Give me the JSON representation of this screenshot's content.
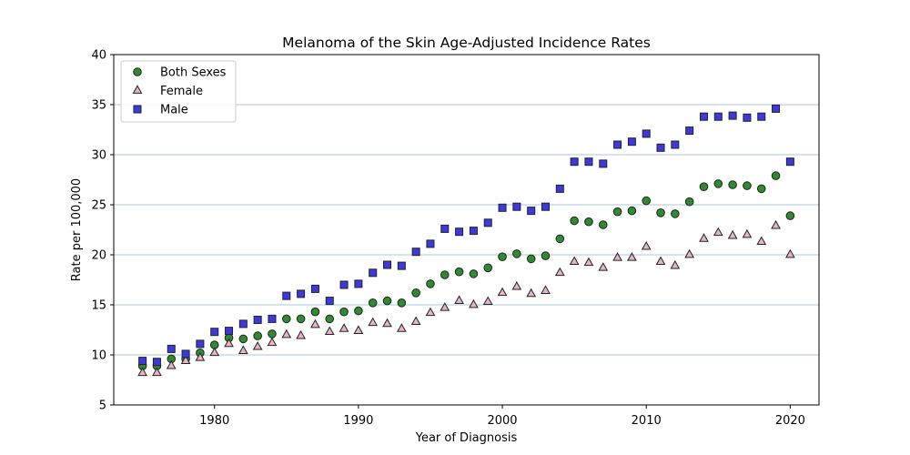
{
  "chart_data": {
    "type": "scatter",
    "title": "Melanoma of the Skin Age-Adjusted Incidence Rates",
    "xlabel": "Year of Diagnosis",
    "ylabel": "Rate per 100,000",
    "xlim": [
      1973,
      2022
    ],
    "ylim": [
      5,
      40
    ],
    "xticks": [
      1980,
      1990,
      2000,
      2010,
      2020
    ],
    "yticks": [
      5,
      10,
      15,
      20,
      25,
      30,
      35,
      40
    ],
    "grid": "horizontal",
    "legend_position": "upper-left",
    "series": [
      {
        "name": "Both Sexes",
        "marker": "circle",
        "color": "#2e8b2e",
        "x": [
          1975,
          1976,
          1977,
          1978,
          1979,
          1980,
          1981,
          1982,
          1983,
          1984,
          1985,
          1986,
          1987,
          1988,
          1989,
          1990,
          1991,
          1992,
          1993,
          1994,
          1995,
          1996,
          1997,
          1998,
          1999,
          2000,
          2001,
          2002,
          2003,
          2004,
          2005,
          2006,
          2007,
          2008,
          2009,
          2010,
          2011,
          2012,
          2013,
          2014,
          2015,
          2016,
          2017,
          2018,
          2019,
          2020
        ],
        "y": [
          8.9,
          8.9,
          9.6,
          9.6,
          10.2,
          11.0,
          11.7,
          11.6,
          11.9,
          12.1,
          13.6,
          13.6,
          14.3,
          13.6,
          14.3,
          14.4,
          15.2,
          15.4,
          15.2,
          16.2,
          17.1,
          18.0,
          18.3,
          18.1,
          18.7,
          19.8,
          20.1,
          19.6,
          19.9,
          21.6,
          23.4,
          23.3,
          23.0,
          24.3,
          24.4,
          25.4,
          24.2,
          24.1,
          25.3,
          26.8,
          27.1,
          27.0,
          26.9,
          26.6,
          27.9,
          23.9
        ]
      },
      {
        "name": "Female",
        "marker": "triangle",
        "color": "#e8b4c4",
        "x": [
          1975,
          1976,
          1977,
          1978,
          1979,
          1980,
          1981,
          1982,
          1983,
          1984,
          1985,
          1986,
          1987,
          1988,
          1989,
          1990,
          1991,
          1992,
          1993,
          1994,
          1995,
          1996,
          1997,
          1998,
          1999,
          2000,
          2001,
          2002,
          2003,
          2004,
          2005,
          2006,
          2007,
          2008,
          2009,
          2010,
          2011,
          2012,
          2013,
          2014,
          2015,
          2016,
          2017,
          2018,
          2019,
          2020
        ],
        "y": [
          8.2,
          8.2,
          8.9,
          9.4,
          9.7,
          10.2,
          11.1,
          10.4,
          10.8,
          11.2,
          12.0,
          11.9,
          13.0,
          12.3,
          12.6,
          12.4,
          13.2,
          13.1,
          12.6,
          13.3,
          14.2,
          14.7,
          15.4,
          15.0,
          15.3,
          16.2,
          16.8,
          16.1,
          16.4,
          18.2,
          19.3,
          19.2,
          18.7,
          19.7,
          19.7,
          20.8,
          19.3,
          18.9,
          20.0,
          21.6,
          22.2,
          21.9,
          22.0,
          21.3,
          22.9,
          20.0
        ]
      },
      {
        "name": "Male",
        "marker": "square",
        "color": "#3a3ae0",
        "x": [
          1975,
          1976,
          1977,
          1978,
          1979,
          1980,
          1981,
          1982,
          1983,
          1984,
          1985,
          1986,
          1987,
          1988,
          1989,
          1990,
          1991,
          1992,
          1993,
          1994,
          1995,
          1996,
          1997,
          1998,
          1999,
          2000,
          2001,
          2002,
          2003,
          2004,
          2005,
          2006,
          2007,
          2008,
          2009,
          2010,
          2011,
          2012,
          2013,
          2014,
          2015,
          2016,
          2017,
          2018,
          2019,
          2020
        ],
        "y": [
          9.4,
          9.3,
          10.6,
          10.1,
          11.1,
          12.3,
          12.4,
          13.1,
          13.5,
          13.6,
          15.9,
          16.1,
          16.6,
          15.4,
          17.0,
          17.1,
          18.2,
          19.0,
          18.9,
          20.3,
          21.1,
          22.6,
          22.3,
          22.4,
          23.2,
          24.7,
          24.8,
          24.4,
          24.8,
          26.6,
          29.3,
          29.3,
          29.1,
          31.0,
          31.3,
          32.1,
          30.7,
          31.0,
          32.4,
          33.8,
          33.8,
          33.9,
          33.7,
          33.8,
          34.6,
          29.3
        ]
      }
    ]
  }
}
